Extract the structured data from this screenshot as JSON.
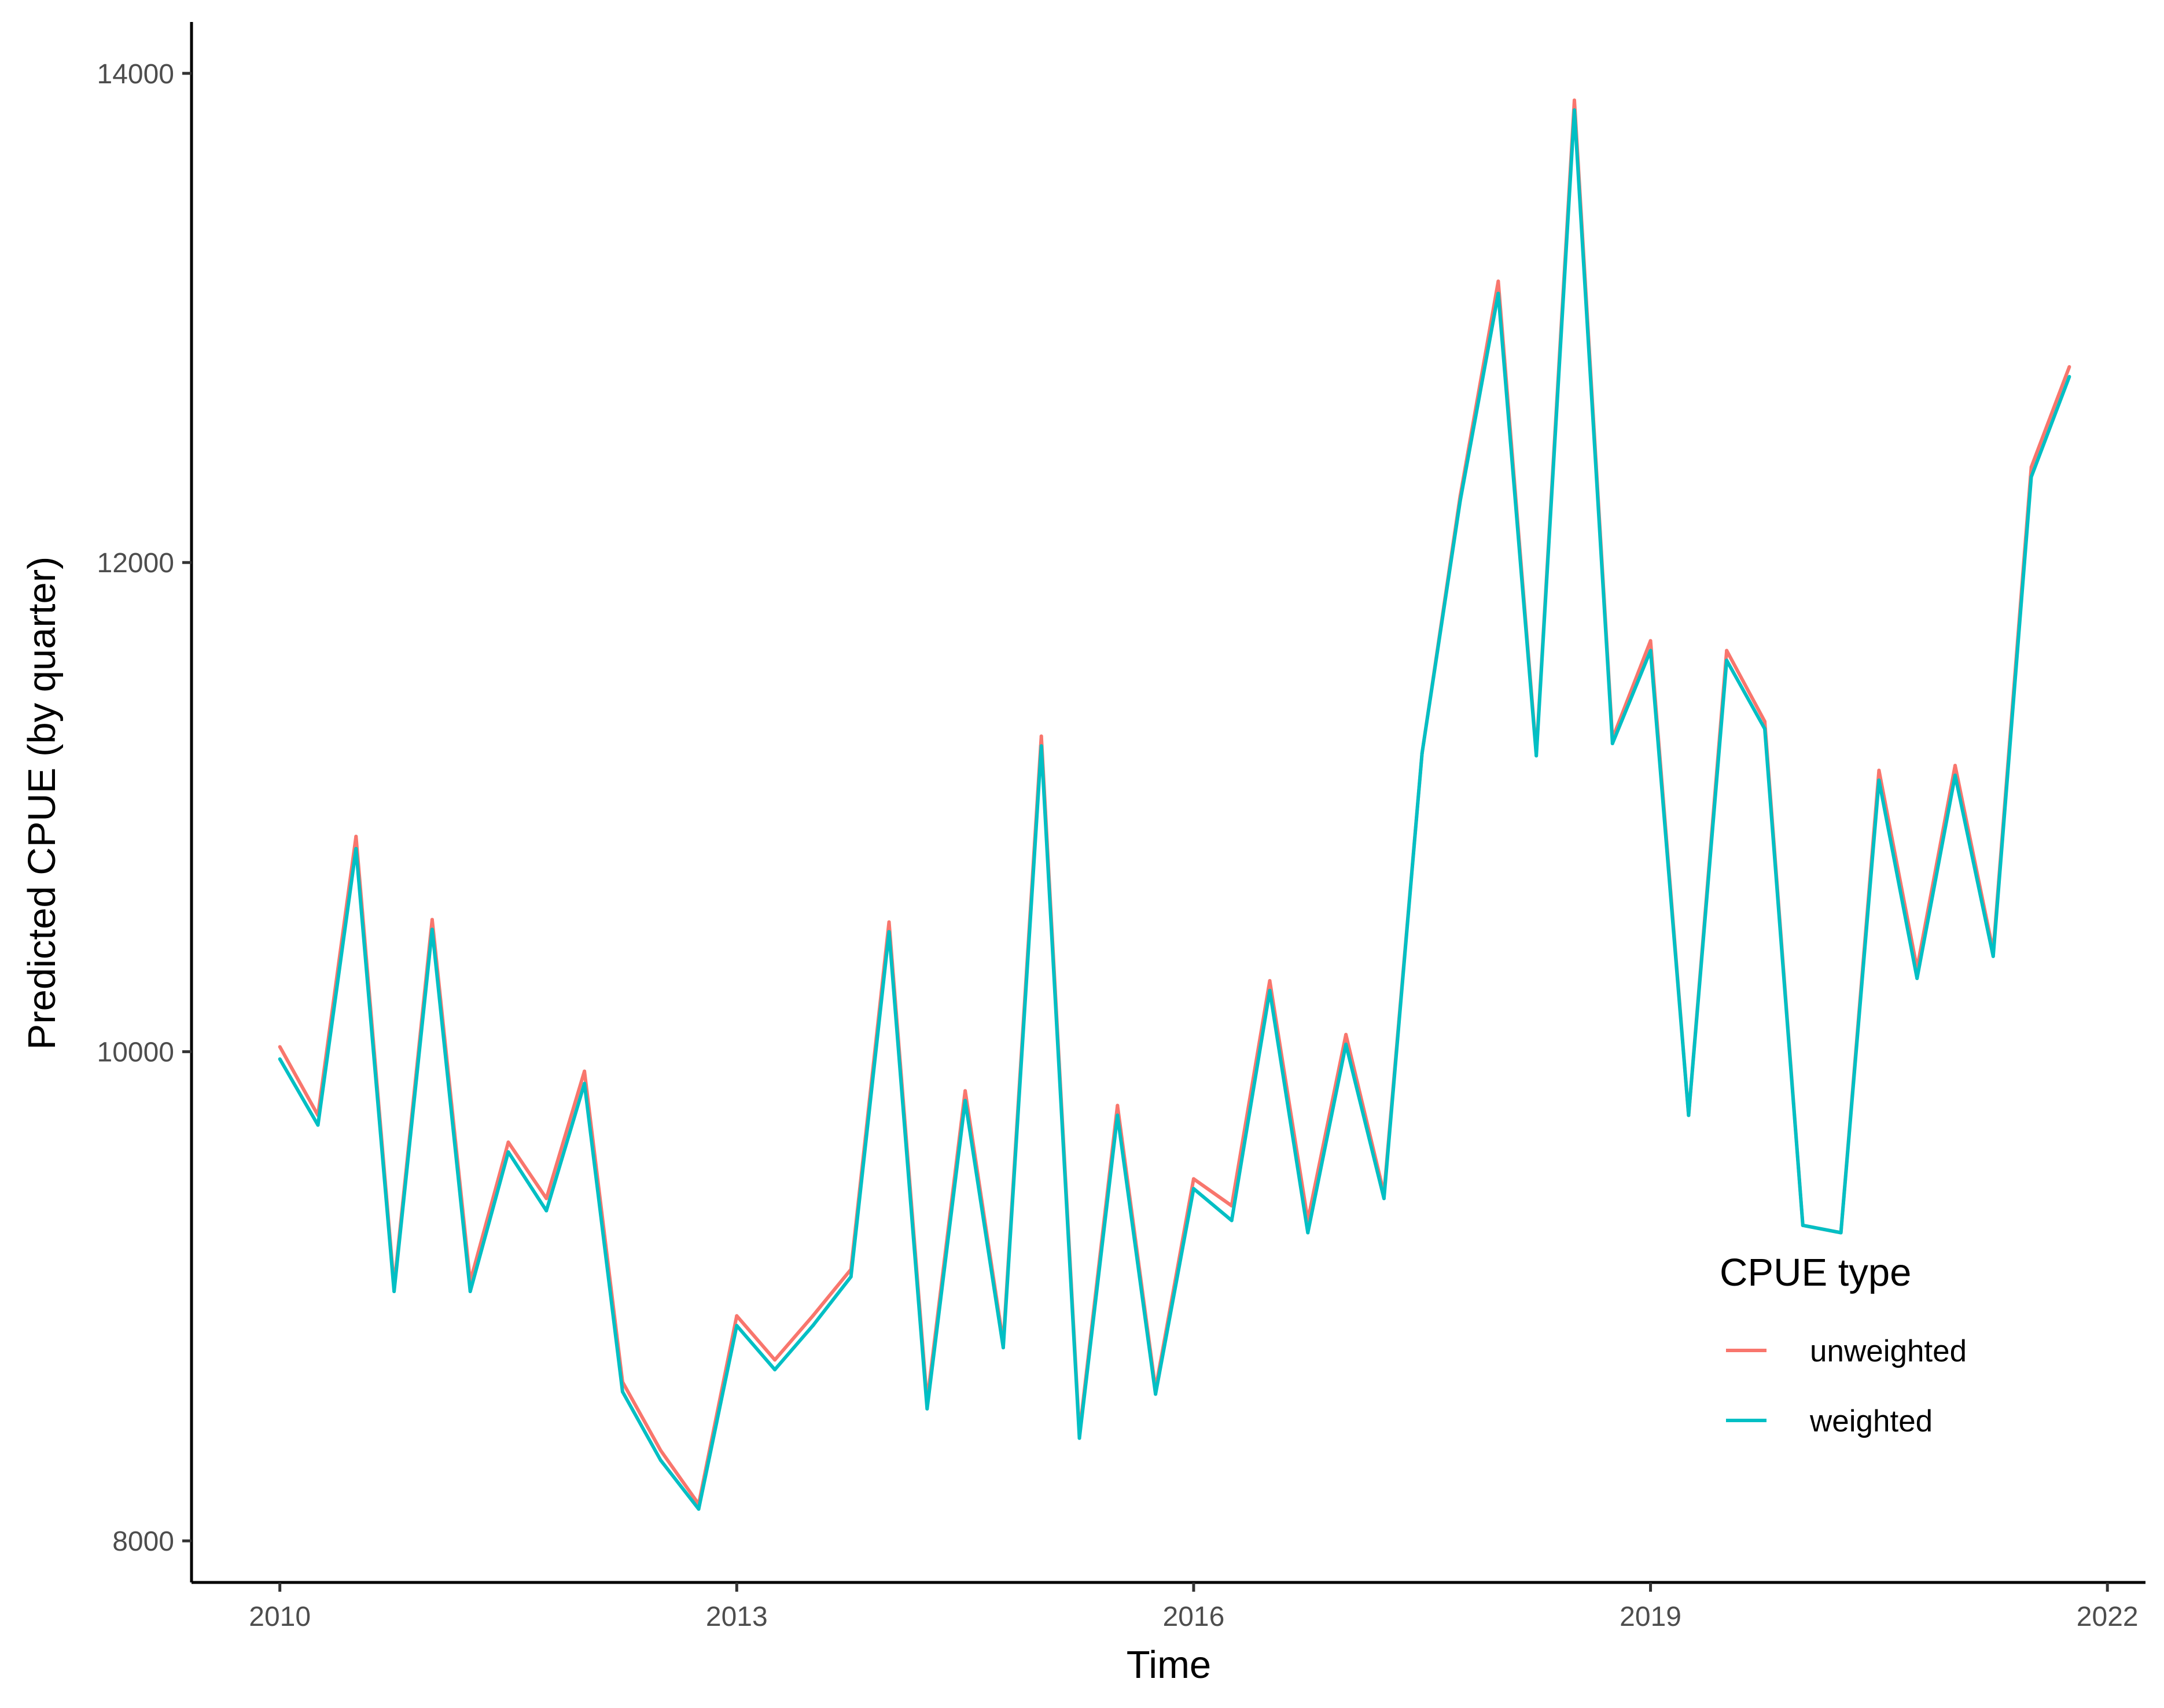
{
  "chart_data": {
    "type": "line",
    "xlabel": "Time",
    "ylabel": "Predicted CPUE (by quarter)",
    "xlim": [
      2009.42,
      2022.25
    ],
    "ylim": [
      7830,
      14210
    ],
    "xticks": [
      2010,
      2013,
      2016,
      2019,
      2022
    ],
    "yticks": [
      8000,
      10000,
      12000,
      14000
    ],
    "x_tick_labels": [
      "2010",
      "2013",
      "2016",
      "2019",
      "2022"
    ],
    "y_tick_labels": [
      "8000",
      "10000",
      "12000",
      "14000"
    ],
    "grid": false,
    "legend": {
      "title": "CPUE type",
      "position": "bottom-right"
    },
    "x": [
      2010.0,
      2010.25,
      2010.5,
      2010.75,
      2011.0,
      2011.25,
      2011.5,
      2011.75,
      2012.0,
      2012.25,
      2012.5,
      2012.75,
      2013.0,
      2013.25,
      2013.5,
      2013.75,
      2014.0,
      2014.25,
      2014.5,
      2014.75,
      2015.0,
      2015.25,
      2015.5,
      2015.75,
      2016.0,
      2016.25,
      2016.5,
      2016.75,
      2017.0,
      2017.25,
      2017.5,
      2017.75,
      2018.0,
      2018.25,
      2018.5,
      2018.75,
      2019.0,
      2019.25,
      2019.5,
      2019.75,
      2020.0,
      2020.25,
      2020.5,
      2020.75,
      2021.0,
      2021.25,
      2021.5,
      2021.75
    ],
    "series": [
      {
        "name": "unweighted",
        "color": "#F8766D",
        "values": [
          10020,
          9740,
          10880,
          9040,
          10540,
          9060,
          9630,
          9400,
          9920,
          8650,
          8370,
          8150,
          8920,
          8740,
          8920,
          9110,
          10530,
          8570,
          9840,
          8810,
          11290,
          8440,
          9780,
          8620,
          9480,
          9370,
          10290,
          9310,
          10070,
          9420,
          11220,
          12270,
          13150,
          11220,
          13890,
          11280,
          11680,
          9740,
          11640,
          11350,
          9290,
          9260,
          11150,
          10340,
          11170,
          10410,
          12390,
          12800
        ]
      },
      {
        "name": "weighted",
        "color": "#00BFC4",
        "values": [
          9970,
          9700,
          10830,
          9020,
          10500,
          9020,
          9590,
          9350,
          9870,
          8610,
          8330,
          8130,
          8880,
          8700,
          8880,
          9080,
          10490,
          8540,
          9800,
          8790,
          11250,
          8420,
          9740,
          8600,
          9440,
          9310,
          10250,
          9260,
          10030,
          9400,
          11220,
          12250,
          13100,
          11210,
          13850,
          11260,
          11640,
          9740,
          11600,
          11320,
          9290,
          9260,
          11110,
          10300,
          11130,
          10390,
          12350,
          12760
        ]
      }
    ]
  }
}
